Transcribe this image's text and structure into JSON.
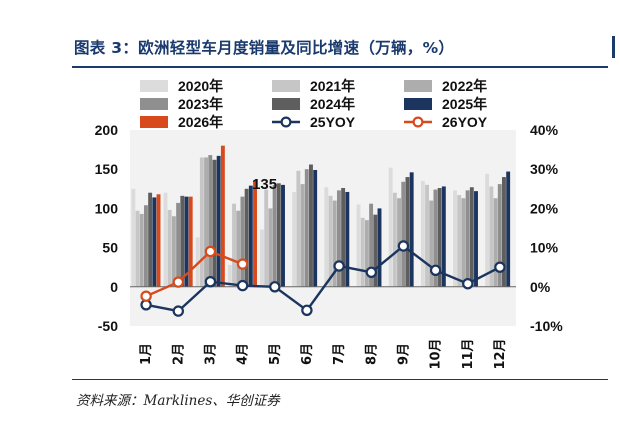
{
  "header": {
    "title": "图表 3：欧洲轻型车月度销量及同比增速（万辆，%）"
  },
  "footer": {
    "source": "资料来源：Marklines、华创证券"
  },
  "chart_data": {
    "type": "bar",
    "categories": [
      "1月",
      "2月",
      "3月",
      "4月",
      "5月",
      "6月",
      "7月",
      "8月",
      "9月",
      "10月",
      "11月",
      "12月"
    ],
    "ylim": [
      -50,
      200
    ],
    "ylim_right": [
      -10,
      40
    ],
    "yticks": [
      "-50",
      "0",
      "50",
      "100",
      "150",
      "200"
    ],
    "yticks_right": [
      "-10%",
      "0%",
      "10%",
      "20%",
      "30%",
      "40%"
    ],
    "series": [
      {
        "name": "2020年",
        "color": "#dcdcdc",
        "axis": "left",
        "kind": "bar",
        "values": [
          125,
          120,
          63,
          28,
          73,
          121,
          127,
          105,
          152,
          135,
          123,
          144
        ]
      },
      {
        "name": "2021年",
        "color": "#c6c6c6",
        "axis": "left",
        "kind": "bar",
        "values": [
          97,
          98,
          165,
          106,
          124,
          148,
          116,
          88,
          120,
          130,
          117,
          128
        ]
      },
      {
        "name": "2022年",
        "color": "#adadad",
        "axis": "left",
        "kind": "bar",
        "values": [
          93,
          90,
          165,
          97,
          100,
          131,
          110,
          85,
          113,
          110,
          113,
          113
        ]
      },
      {
        "name": "2023年",
        "color": "#8f8f8f",
        "axis": "left",
        "kind": "bar",
        "values": [
          104,
          107,
          168,
          115,
          130,
          150,
          123,
          106,
          134,
          124,
          123,
          131
        ]
      },
      {
        "name": "2024年",
        "color": "#5e5e5e",
        "axis": "left",
        "kind": "bar",
        "values": [
          120,
          116,
          162,
          125,
          132,
          156,
          126,
          92,
          140,
          126,
          127,
          140
        ]
      },
      {
        "name": "2025年",
        "color": "#1b355e",
        "axis": "left",
        "kind": "bar",
        "values": [
          114,
          115,
          167,
          129,
          130,
          149,
          121,
          100,
          146,
          128,
          122,
          147
        ]
      },
      {
        "name": "2026年",
        "color": "#d84a1c",
        "axis": "left",
        "kind": "bar",
        "values": [
          118,
          115,
          180,
          135,
          null,
          null,
          null,
          null,
          null,
          null,
          null,
          null
        ]
      },
      {
        "name": "25YOY",
        "color": "#1b355e",
        "axis": "right",
        "kind": "line",
        "values": [
          -4.6,
          -6.2,
          1.3,
          0.3,
          0.0,
          -6.0,
          5.3,
          3.7,
          10.4,
          4.2,
          0.8,
          5.0
        ]
      },
      {
        "name": "26YOY",
        "color": "#d84a1c",
        "axis": "right",
        "kind": "line",
        "values": [
          -2.4,
          1.2,
          9.0,
          5.8,
          null,
          null,
          null,
          null,
          null,
          null,
          null,
          null
        ]
      }
    ],
    "data_labels": [
      {
        "category": "4月",
        "series": "2026年",
        "text": "135"
      }
    ],
    "grid": false,
    "legend_position": "top"
  }
}
